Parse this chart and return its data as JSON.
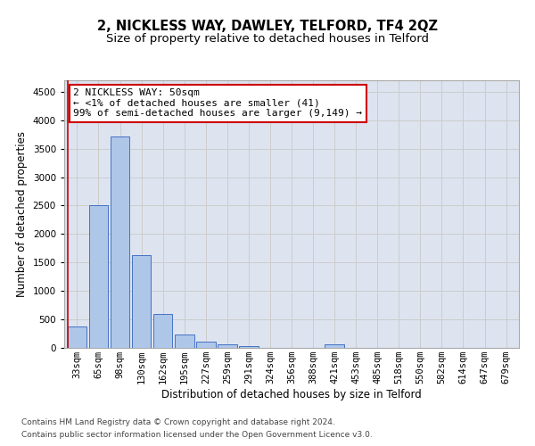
{
  "title": "2, NICKLESS WAY, DAWLEY, TELFORD, TF4 2QZ",
  "subtitle": "Size of property relative to detached houses in Telford",
  "xlabel": "Distribution of detached houses by size in Telford",
  "ylabel": "Number of detached properties",
  "categories": [
    "33sqm",
    "65sqm",
    "98sqm",
    "130sqm",
    "162sqm",
    "195sqm",
    "227sqm",
    "259sqm",
    "291sqm",
    "324sqm",
    "356sqm",
    "388sqm",
    "421sqm",
    "453sqm",
    "485sqm",
    "518sqm",
    "550sqm",
    "582sqm",
    "614sqm",
    "647sqm",
    "679sqm"
  ],
  "values": [
    370,
    2510,
    3720,
    1630,
    590,
    230,
    105,
    60,
    35,
    0,
    0,
    0,
    55,
    0,
    0,
    0,
    0,
    0,
    0,
    0,
    0
  ],
  "bar_color": "#aec6e8",
  "bar_edge_color": "#4472c4",
  "annotation_text": "2 NICKLESS WAY: 50sqm\n← <1% of detached houses are smaller (41)\n99% of semi-detached houses are larger (9,149) →",
  "annotation_box_color": "#ffffff",
  "annotation_box_edge_color": "#cc0000",
  "red_line_x": 0,
  "ylim": [
    0,
    4700
  ],
  "yticks": [
    0,
    500,
    1000,
    1500,
    2000,
    2500,
    3000,
    3500,
    4000,
    4500
  ],
  "grid_color": "#cccccc",
  "bg_color": "#dde4f0",
  "footer_line1": "Contains HM Land Registry data © Crown copyright and database right 2024.",
  "footer_line2": "Contains public sector information licensed under the Open Government Licence v3.0.",
  "title_fontsize": 10.5,
  "subtitle_fontsize": 9.5,
  "axis_label_fontsize": 8.5,
  "tick_fontsize": 7.5,
  "annotation_fontsize": 8,
  "footer_fontsize": 6.5
}
